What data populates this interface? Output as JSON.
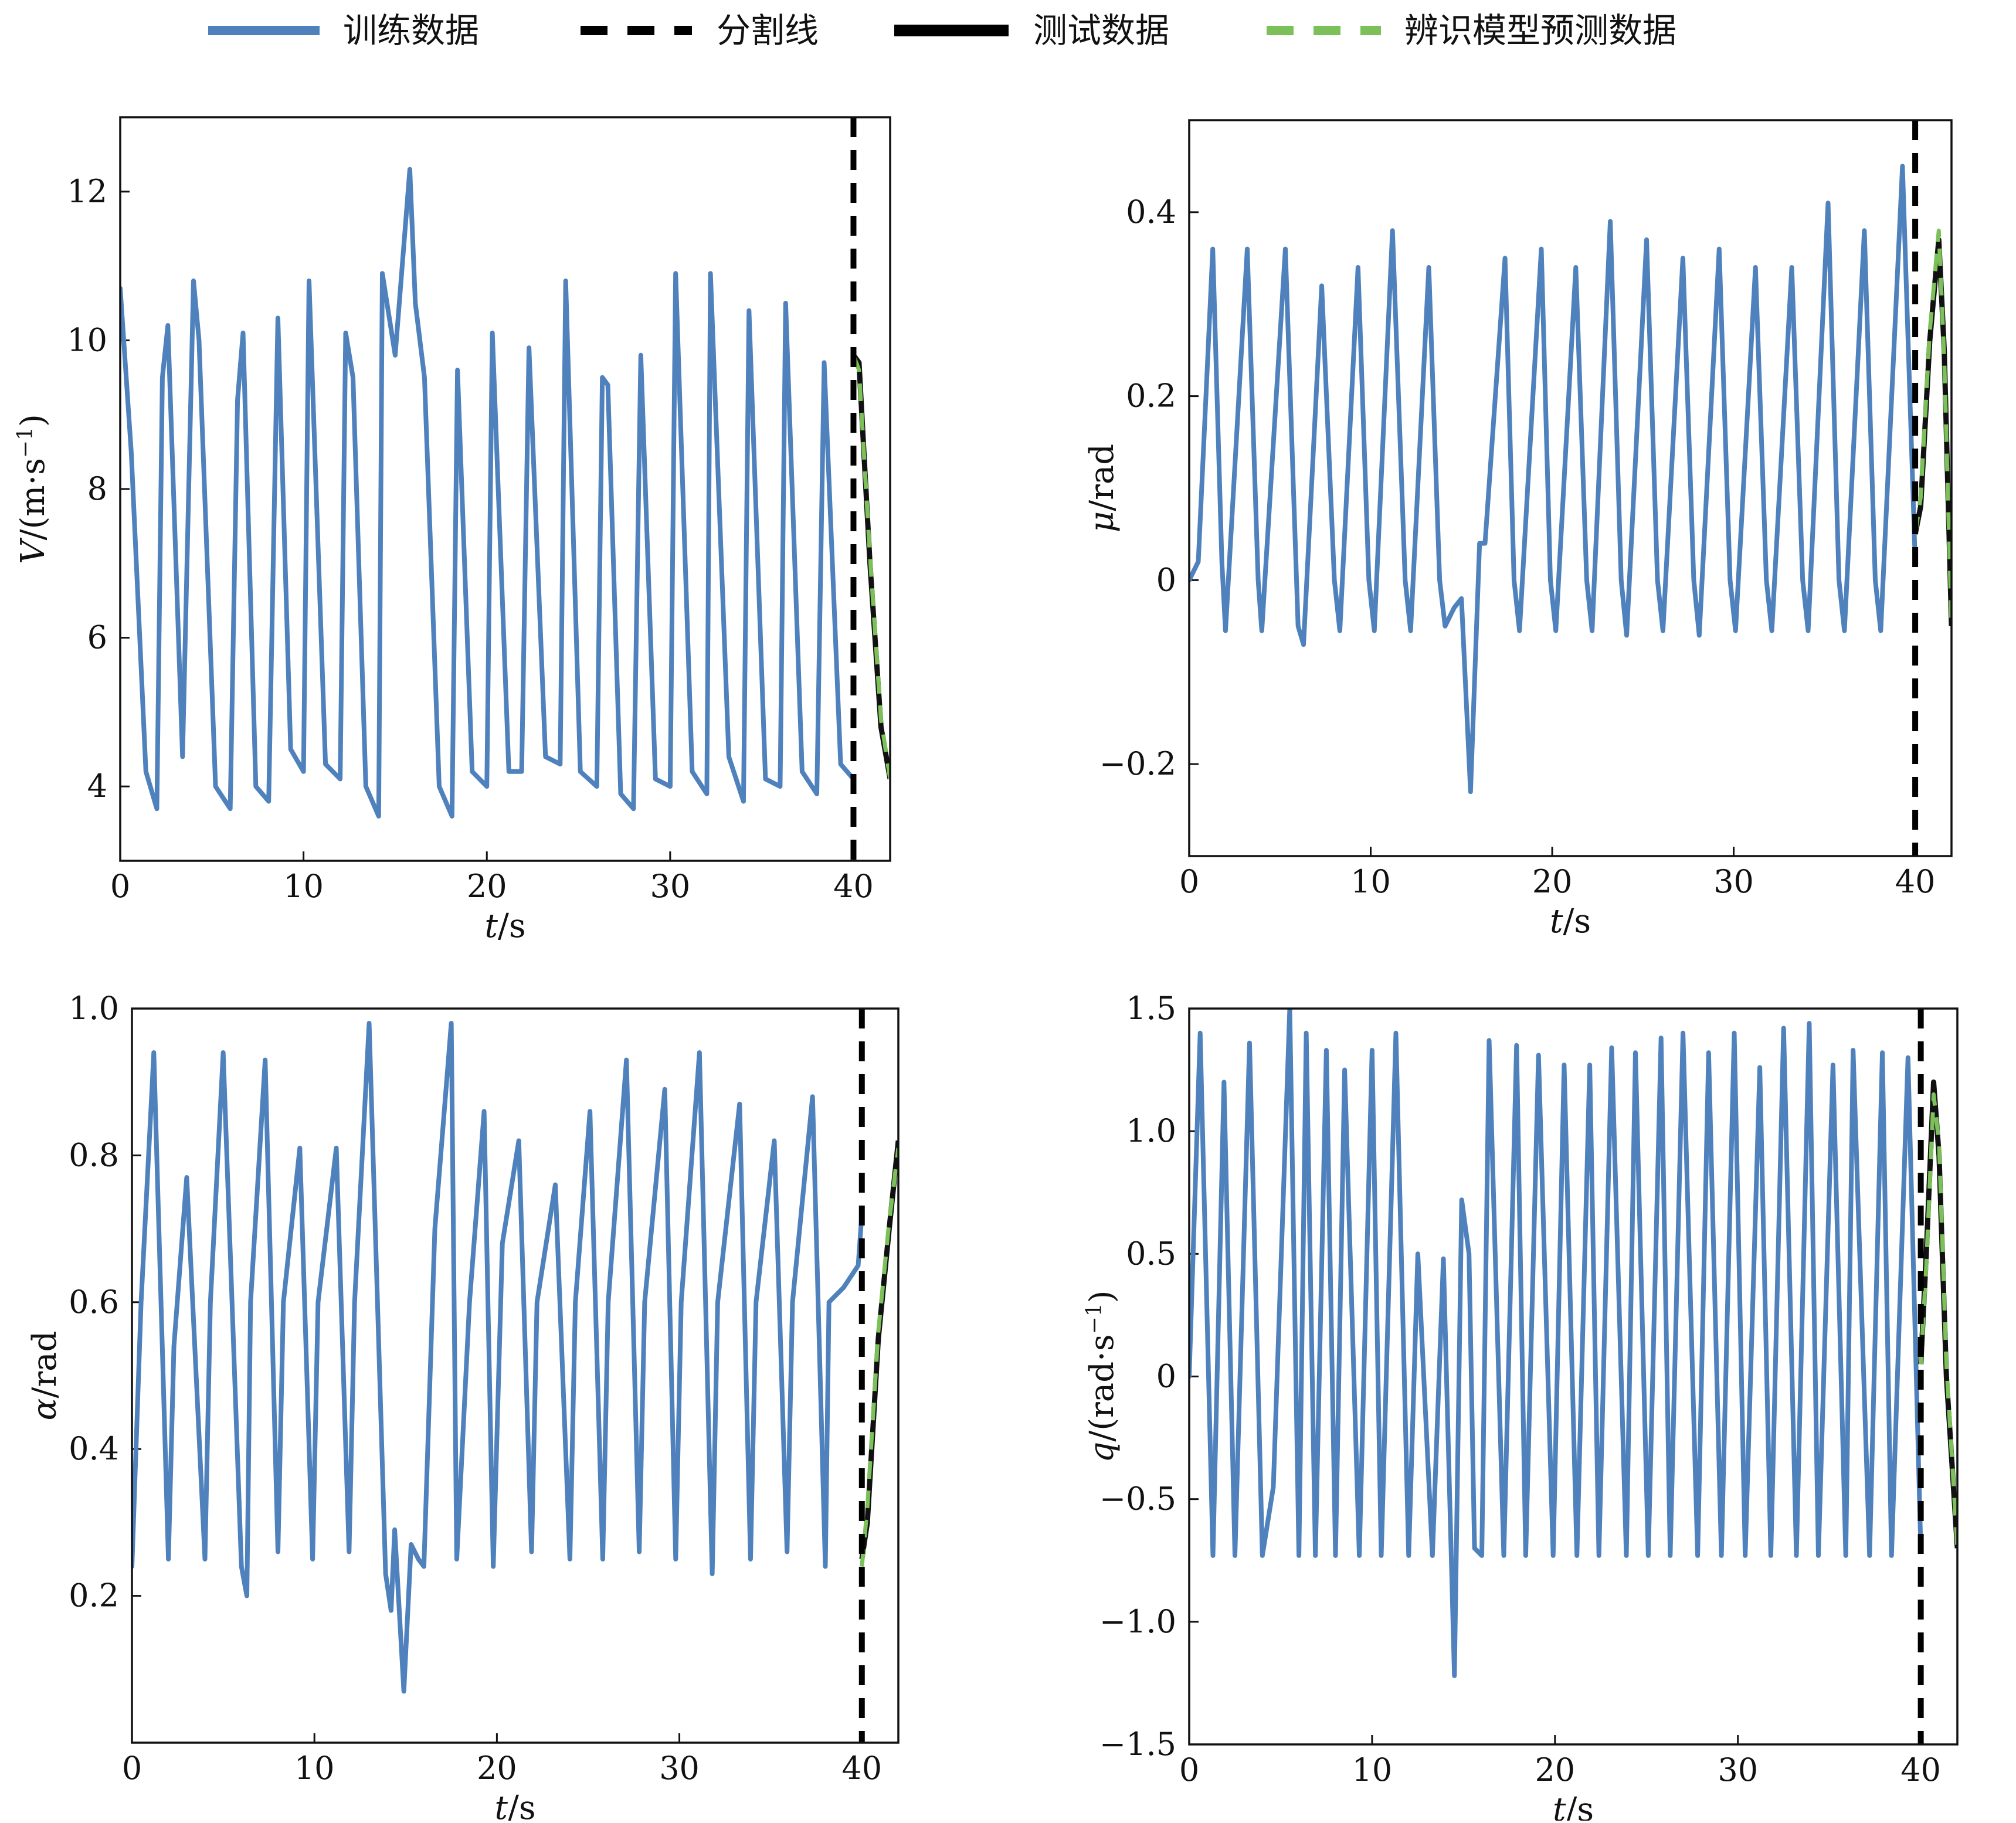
{
  "legend": [
    {
      "label": "训练数据",
      "style": "solid",
      "color": "#4f81bd"
    },
    {
      "label": "分割线",
      "style": "dashed",
      "color": "#000000"
    },
    {
      "label": "测试数据",
      "style": "solid-thick",
      "color": "#000000"
    },
    {
      "label": "辨识模型预测数据",
      "style": "dashed",
      "color": "#7cc05a"
    }
  ],
  "colors": {
    "training": "#4f81bd",
    "split": "#000000",
    "test": "#111111",
    "prediction": "#7cc05a"
  },
  "chart_data": [
    {
      "id": "V",
      "type": "line",
      "position": "top-left",
      "ylabel_var": "V",
      "ylabel_unit": "/(m·s",
      "ylabel_sup": "−1",
      "ylabel_close": ")",
      "xlabel_var": "t",
      "xlabel_unit": "/s",
      "xlim": [
        0,
        42
      ],
      "ylim": [
        3,
        13
      ],
      "xticks": [
        0,
        10,
        20,
        30,
        40
      ],
      "xtick_labels": [
        "0",
        "10",
        "20",
        "30",
        "40"
      ],
      "yticks": [
        4,
        6,
        8,
        10,
        12
      ],
      "ytick_labels": [
        "4",
        "6",
        "8",
        "10",
        "12"
      ],
      "split_x": 40,
      "training": {
        "x": [
          0,
          0.6,
          1.4,
          2.0,
          2.3,
          2.6,
          3.4,
          4.0,
          4.3,
          5.2,
          6.0,
          6.4,
          6.7,
          7.4,
          8.1,
          8.6,
          9.3,
          10.0,
          10.3,
          11.2,
          12.0,
          12.3,
          12.7,
          13.4,
          14.1,
          14.3,
          15.0,
          15.8,
          16.1,
          16.6,
          17.4,
          18.1,
          18.4,
          19.2,
          20.0,
          20.3,
          21.2,
          21.9,
          22.3,
          23.2,
          24.0,
          24.3,
          25.1,
          26.0,
          26.3,
          26.6,
          27.3,
          28.0,
          28.4,
          29.2,
          30.0,
          30.3,
          31.2,
          32.0,
          32.2,
          33.2,
          34.0,
          34.3,
          35.2,
          36.0,
          36.3,
          37.2,
          38.0,
          38.4,
          39.3,
          40.0
        ],
        "y": [
          10.7,
          8.5,
          4.2,
          3.7,
          9.5,
          10.2,
          4.4,
          10.8,
          10.0,
          4.0,
          3.7,
          9.2,
          10.1,
          4.0,
          3.8,
          10.3,
          4.5,
          4.2,
          10.8,
          4.3,
          4.1,
          10.1,
          9.5,
          4.0,
          3.6,
          10.9,
          9.8,
          12.3,
          10.5,
          9.5,
          4.0,
          3.6,
          9.6,
          4.2,
          4.0,
          10.1,
          4.2,
          4.2,
          9.9,
          4.4,
          4.3,
          10.8,
          4.2,
          4.0,
          9.5,
          9.4,
          3.9,
          3.7,
          9.8,
          4.1,
          4.0,
          10.9,
          4.2,
          3.9,
          10.9,
          4.4,
          3.8,
          10.4,
          4.1,
          4.0,
          10.5,
          4.2,
          3.9,
          9.7,
          4.3,
          4.1
        ]
      },
      "test": {
        "x": [
          40,
          40.3,
          40.9,
          41.5,
          42
        ],
        "y": [
          9.8,
          9.7,
          7.0,
          4.8,
          4.1
        ]
      },
      "prediction": {
        "x": [
          40,
          40.3,
          40.9,
          41.5,
          42
        ],
        "y": [
          9.8,
          9.6,
          7.1,
          4.9,
          4.1
        ]
      }
    },
    {
      "id": "mu",
      "type": "line",
      "position": "top-right",
      "ylabel_var": "μ",
      "ylabel_unit": "/rad",
      "ylabel_sup": "",
      "ylabel_close": "",
      "xlabel_var": "t",
      "xlabel_unit": "/s",
      "xlim": [
        0,
        42
      ],
      "ylim": [
        -0.3,
        0.5
      ],
      "xticks": [
        0,
        10,
        20,
        30,
        40
      ],
      "xtick_labels": [
        "0",
        "10",
        "20",
        "30",
        "40"
      ],
      "yticks": [
        -0.2,
        0,
        0.2,
        0.4
      ],
      "ytick_labels": [
        "−0.2",
        "0",
        "0.2",
        "0.4"
      ],
      "split_x": 40,
      "training": {
        "x": [
          0,
          0.5,
          1.3,
          1.8,
          2.0,
          3.2,
          3.8,
          4.0,
          5.3,
          6.0,
          6.3,
          7.3,
          8.0,
          8.3,
          9.3,
          9.9,
          10.2,
          11.2,
          11.9,
          12.2,
          13.2,
          13.8,
          14.1,
          14.6,
          15.0,
          15.5,
          16.0,
          16.3,
          17.4,
          17.9,
          18.2,
          19.4,
          19.9,
          20.2,
          21.3,
          21.9,
          22.2,
          23.2,
          23.8,
          24.1,
          25.2,
          25.8,
          26.1,
          27.2,
          27.8,
          28.1,
          29.2,
          29.8,
          30.1,
          31.2,
          31.8,
          32.1,
          33.2,
          33.8,
          34.1,
          35.2,
          35.8,
          36.1,
          37.2,
          37.8,
          38.1,
          39.3,
          40.0
        ],
        "y": [
          0,
          0.02,
          0.36,
          0.02,
          -0.055,
          0.36,
          0.0,
          -0.055,
          0.36,
          -0.05,
          -0.07,
          0.32,
          0.0,
          -0.055,
          0.34,
          0.0,
          -0.055,
          0.38,
          0.0,
          -0.055,
          0.34,
          0.0,
          -0.05,
          -0.03,
          -0.02,
          -0.23,
          0.04,
          0.04,
          0.35,
          0.0,
          -0.055,
          0.36,
          0.0,
          -0.055,
          0.34,
          0.0,
          -0.055,
          0.39,
          0.0,
          -0.06,
          0.37,
          0.0,
          -0.055,
          0.35,
          0.0,
          -0.06,
          0.36,
          0.0,
          -0.055,
          0.34,
          0.0,
          -0.055,
          0.34,
          0.0,
          -0.055,
          0.41,
          0.0,
          -0.055,
          0.38,
          0.0,
          -0.055,
          0.45,
          0.02
        ]
      },
      "test": {
        "x": [
          40,
          40.3,
          40.8,
          41.3,
          41.6,
          42
        ],
        "y": [
          0.05,
          0.08,
          0.26,
          0.37,
          0.25,
          -0.05
        ]
      },
      "prediction": {
        "x": [
          40,
          40.3,
          40.8,
          41.3,
          41.6,
          42
        ],
        "y": [
          0.05,
          0.09,
          0.27,
          0.38,
          0.24,
          -0.05
        ]
      }
    },
    {
      "id": "alpha",
      "type": "line",
      "position": "bottom-left",
      "ylabel_var": "α",
      "ylabel_unit": "/rad",
      "ylabel_sup": "",
      "ylabel_close": "",
      "xlabel_var": "t",
      "xlabel_unit": "/s",
      "xlim": [
        0,
        42
      ],
      "ylim": [
        0,
        1
      ],
      "xticks": [
        0,
        10,
        20,
        30,
        40
      ],
      "xtick_labels": [
        "0",
        "10",
        "20",
        "30",
        "40"
      ],
      "yticks": [
        0.2,
        0.4,
        0.6,
        0.8,
        1.0
      ],
      "ytick_labels": [
        "0.2",
        "0.4",
        "0.6",
        "0.8",
        "1.0"
      ],
      "split_x": 40,
      "training": {
        "x": [
          0,
          0.5,
          1.2,
          2.0,
          2.3,
          3.0,
          4.0,
          4.3,
          5.0,
          6.0,
          6.3,
          6.5,
          7.3,
          8.0,
          8.3,
          9.2,
          9.9,
          10.2,
          11.2,
          11.9,
          12.2,
          13.0,
          13.9,
          14.2,
          14.4,
          14.9,
          15.3,
          15.7,
          16.0,
          16.6,
          17.5,
          17.8,
          18.5,
          19.3,
          19.8,
          20.3,
          21.2,
          21.9,
          22.2,
          23.2,
          24.0,
          24.3,
          25.1,
          25.8,
          26.1,
          27.1,
          27.8,
          28.1,
          29.2,
          29.8,
          30.1,
          31.1,
          31.8,
          32.1,
          33.3,
          33.9,
          34.2,
          35.2,
          35.9,
          36.2,
          37.3,
          38.0,
          38.2,
          39.0,
          39.8,
          40.0
        ],
        "y": [
          0.24,
          0.6,
          0.94,
          0.25,
          0.54,
          0.77,
          0.25,
          0.6,
          0.94,
          0.24,
          0.2,
          0.6,
          0.93,
          0.26,
          0.6,
          0.81,
          0.25,
          0.6,
          0.81,
          0.26,
          0.6,
          0.98,
          0.23,
          0.18,
          0.29,
          0.07,
          0.27,
          0.25,
          0.24,
          0.7,
          0.98,
          0.25,
          0.6,
          0.86,
          0.24,
          0.68,
          0.82,
          0.26,
          0.6,
          0.76,
          0.25,
          0.6,
          0.86,
          0.25,
          0.6,
          0.93,
          0.26,
          0.6,
          0.89,
          0.25,
          0.6,
          0.94,
          0.23,
          0.6,
          0.87,
          0.25,
          0.6,
          0.82,
          0.26,
          0.6,
          0.88,
          0.24,
          0.6,
          0.62,
          0.65,
          0.72
        ]
      },
      "test": {
        "x": [
          40,
          40.3,
          40.9,
          41.5,
          42
        ],
        "y": [
          0.25,
          0.3,
          0.55,
          0.7,
          0.82
        ]
      },
      "prediction": {
        "x": [
          40,
          40.3,
          40.9,
          41.5,
          42
        ],
        "y": [
          0.24,
          0.32,
          0.56,
          0.71,
          0.81
        ]
      }
    },
    {
      "id": "q",
      "type": "line",
      "position": "bottom-right",
      "ylabel_var": "q",
      "ylabel_unit": "/(rad·s",
      "ylabel_sup": "−1",
      "ylabel_close": ")",
      "xlabel_var": "t",
      "xlabel_unit": "/s",
      "xlim": [
        0,
        42
      ],
      "ylim": [
        -1.5,
        1.5
      ],
      "xticks": [
        0,
        10,
        20,
        30,
        40
      ],
      "xtick_labels": [
        "0",
        "10",
        "20",
        "30",
        "40"
      ],
      "yticks": [
        -1.5,
        -1.0,
        -0.5,
        0,
        0.5,
        1.0,
        1.5
      ],
      "ytick_labels": [
        "−1.5",
        "−1.0",
        "−0.5",
        "0",
        "0.5",
        "1.0",
        "1.5"
      ],
      "split_x": 40,
      "training": {
        "x": [
          0,
          0.6,
          1.3,
          1.9,
          2.5,
          3.3,
          4.0,
          4.6,
          5.5,
          6.0,
          6.4,
          6.9,
          7.5,
          8.0,
          8.5,
          9.3,
          10.0,
          10.5,
          11.3,
          12.0,
          12.5,
          13.3,
          13.9,
          14.5,
          14.9,
          15.3,
          15.6,
          16.0,
          16.4,
          17.2,
          17.9,
          18.4,
          19.1,
          19.9,
          20.5,
          21.2,
          21.9,
          22.4,
          23.1,
          23.9,
          24.4,
          25.1,
          25.8,
          26.3,
          27.0,
          27.8,
          28.4,
          29.1,
          29.8,
          30.4,
          31.2,
          31.8,
          32.5,
          33.2,
          33.9,
          34.4,
          35.2,
          35.9,
          36.3,
          37.2,
          37.9,
          38.4,
          39.3,
          40.0
        ],
        "y": [
          0,
          1.4,
          -0.73,
          1.2,
          -0.73,
          1.36,
          -0.73,
          -0.45,
          1.5,
          -0.73,
          1.4,
          -0.73,
          1.33,
          -0.73,
          1.25,
          -0.73,
          1.33,
          -0.73,
          1.4,
          -0.73,
          0.5,
          -0.73,
          0.48,
          -1.22,
          0.72,
          0.5,
          -0.7,
          -0.73,
          1.37,
          -0.73,
          1.35,
          -0.73,
          1.31,
          -0.73,
          1.27,
          -0.73,
          1.27,
          -0.73,
          1.34,
          -0.73,
          1.32,
          -0.73,
          1.38,
          -0.73,
          1.4,
          -0.73,
          1.32,
          -0.73,
          1.4,
          -0.73,
          1.26,
          -0.73,
          1.42,
          -0.73,
          1.44,
          -0.73,
          1.27,
          -0.73,
          1.33,
          -0.73,
          1.32,
          -0.73,
          1.3,
          -0.7
        ]
      },
      "test": {
        "x": [
          40,
          40.3,
          40.7,
          41.0,
          41.4,
          42
        ],
        "y": [
          0.05,
          0.5,
          1.2,
          0.9,
          0.0,
          -0.7
        ]
      },
      "prediction": {
        "x": [
          40,
          40.3,
          40.7,
          41.0,
          41.4,
          42
        ],
        "y": [
          0.05,
          0.45,
          1.15,
          0.95,
          0.05,
          -0.7
        ]
      }
    }
  ]
}
